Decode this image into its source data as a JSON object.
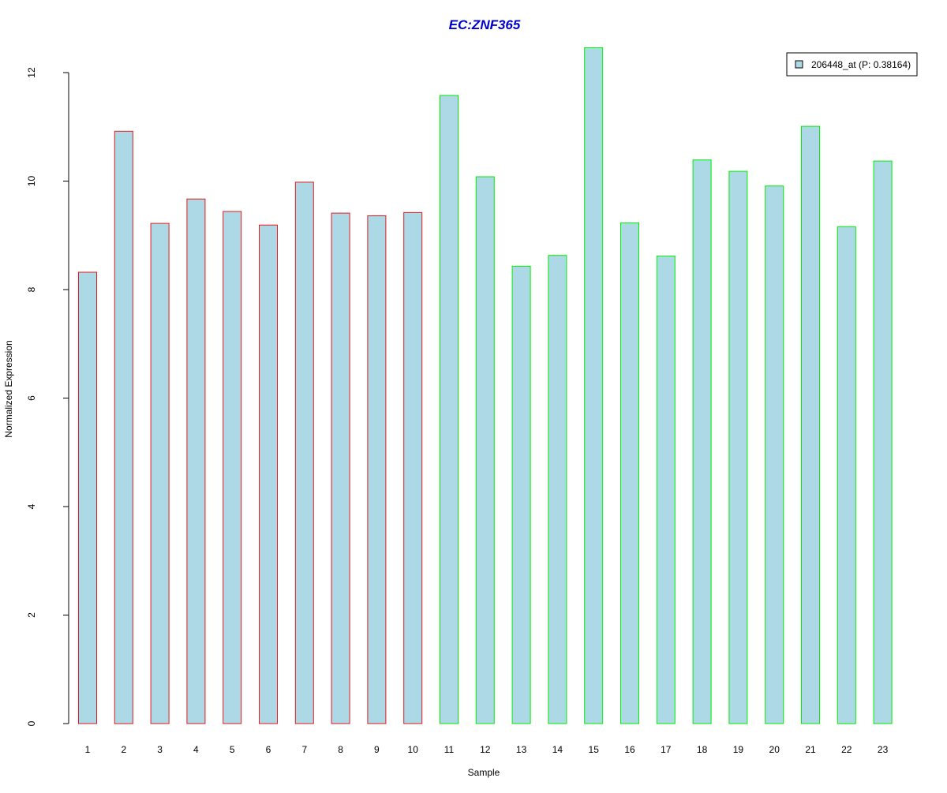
{
  "chart_data": {
    "type": "bar",
    "title": "EC:ZNF365",
    "xlabel": "Sample",
    "ylabel": "Normalized Expression",
    "ylim": [
      0,
      12.5
    ],
    "yticks": [
      0,
      2,
      4,
      6,
      8,
      10,
      12
    ],
    "categories": [
      "1",
      "2",
      "3",
      "4",
      "5",
      "6",
      "7",
      "8",
      "9",
      "10",
      "11",
      "12",
      "13",
      "14",
      "15",
      "16",
      "17",
      "18",
      "19",
      "20",
      "21",
      "22",
      "23"
    ],
    "series": [
      {
        "name": "206448_at (P: 0.38164)",
        "values": [
          8.32,
          10.92,
          9.22,
          9.67,
          9.44,
          9.19,
          9.98,
          9.41,
          9.36,
          9.42,
          11.58,
          10.08,
          8.43,
          8.63,
          12.46,
          9.23,
          8.62,
          10.39,
          10.18,
          9.91,
          11.01,
          9.16,
          10.37
        ]
      }
    ],
    "groups": [
      {
        "samples": [
          1,
          10
        ],
        "border_color": "#e31a1c"
      },
      {
        "samples": [
          11,
          23
        ],
        "border_color": "#00ee00"
      }
    ],
    "colors": {
      "bar_fill": "#add8e6",
      "title": "#0000cc",
      "axis": "#000000"
    },
    "legend_position": "top-right",
    "grid": false
  }
}
